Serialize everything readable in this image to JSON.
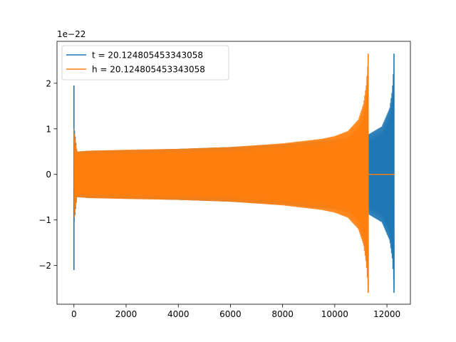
{
  "chart_data": {
    "type": "line",
    "title": "",
    "xlabel": "",
    "ylabel": "",
    "y_offset_label": "1e−22",
    "xlim": [
      -650,
      12900
    ],
    "ylim": [
      -2.85,
      2.92
    ],
    "x_ticks": [
      0,
      2000,
      4000,
      6000,
      8000,
      10000,
      12000
    ],
    "x_tick_labels": [
      "0",
      "2000",
      "4000",
      "6000",
      "8000",
      "10000",
      "12000"
    ],
    "y_ticks": [
      -2,
      -1,
      0,
      1,
      2
    ],
    "y_tick_labels": [
      "−2",
      "−1",
      "0",
      "1",
      "2"
    ],
    "grid": false,
    "legend_position": "top-left",
    "series": [
      {
        "name": "t = 20.124805453343058",
        "color": "#1f77b4",
        "envelope": {
          "x": [
            0,
            120,
            600,
            2000,
            4000,
            6000,
            8000,
            10000,
            11000,
            11300,
            11800,
            12100,
            12200,
            12250,
            12290
          ],
          "amplitude": [
            1.1,
            0.5,
            0.52,
            0.53,
            0.56,
            0.6,
            0.66,
            0.76,
            0.84,
            0.88,
            1.05,
            1.45,
            1.85,
            2.3,
            2.6
          ]
        },
        "spikes": [
          {
            "x": 0,
            "min": -2.1,
            "max": 1.95
          },
          {
            "x": 12270,
            "min": -2.6,
            "max": 2.65
          }
        ],
        "end_x": 12290,
        "flat_after_end": false
      },
      {
        "name": "h = 20.124805453343058",
        "color": "#ff7f0e",
        "envelope": {
          "x": [
            0,
            120,
            600,
            2000,
            4000,
            6000,
            8000,
            9500,
            10000,
            10500,
            10900,
            11100,
            11200,
            11260,
            11300
          ],
          "amplitude": [
            1.0,
            0.5,
            0.52,
            0.54,
            0.56,
            0.6,
            0.68,
            0.78,
            0.84,
            0.95,
            1.2,
            1.55,
            1.95,
            2.4,
            2.6
          ]
        },
        "spikes": [
          {
            "x": 11280,
            "min": -2.6,
            "max": 2.65
          }
        ],
        "end_x": 11300,
        "flat_after_end": true,
        "flat_until_x": 12290
      }
    ]
  }
}
